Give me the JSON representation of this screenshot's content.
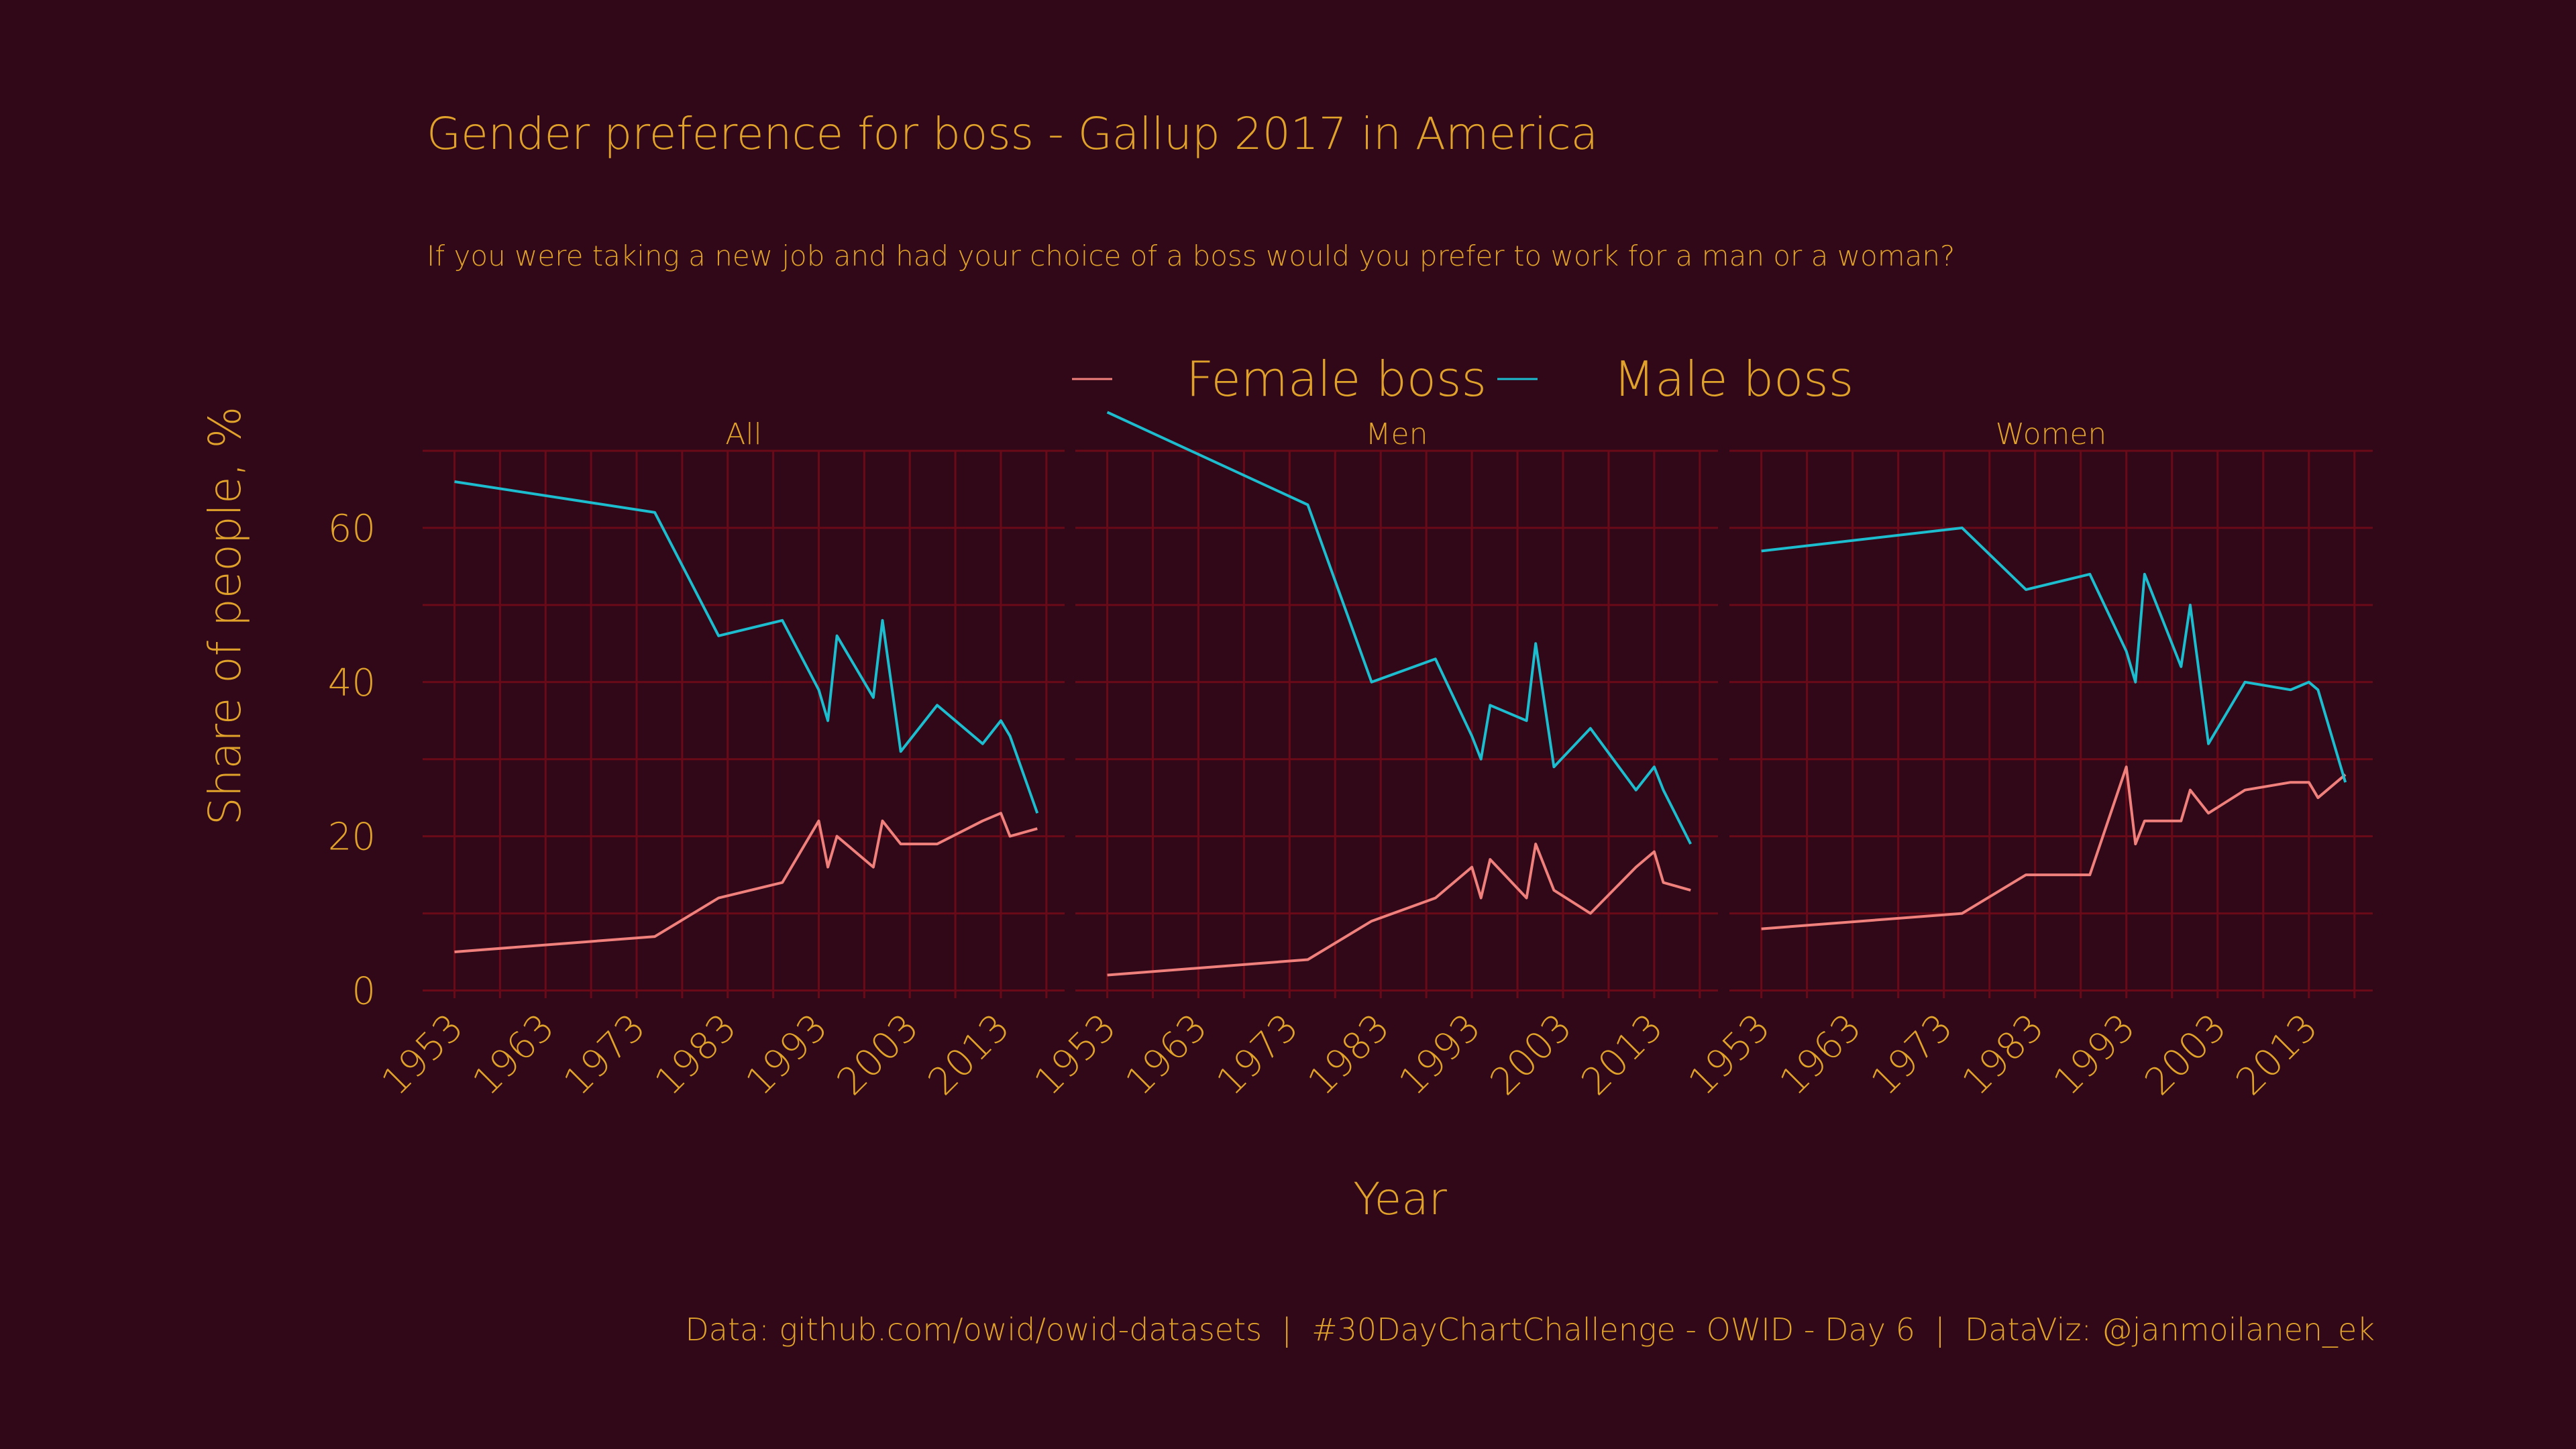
{
  "colors": {
    "background": "#310818",
    "text": "#e0a22a",
    "grid": "#6a0a18",
    "female": "#f0807c",
    "male": "#1cbdce"
  },
  "chart_data": {
    "type": "line",
    "title": "Gender preference for boss - Gallup 2017 in America",
    "subtitle": "If you were taking a new job and had your choice of a boss would you prefer to work for a man or a woman?",
    "xlabel": "Year",
    "ylabel": "Share of people, %",
    "caption": "Data: github.com/owid/owid-datasets  |  #30DayChartChallenge - OWID - Day 6  |  DataViz: @janmoilanen_ek",
    "legend": {
      "position": "top",
      "entries": [
        "Female boss",
        "Male boss"
      ]
    },
    "grid": true,
    "xlim": [
      1949.5,
      2020
    ],
    "ylim": [
      -1,
      70
    ],
    "x_ticks": [
      1953,
      1963,
      1973,
      1983,
      1993,
      2003,
      2013
    ],
    "y_ticks": [
      0,
      20,
      40,
      60
    ],
    "panels": [
      {
        "name": "All",
        "series": [
          {
            "name": "Female boss",
            "x": [
              1953,
              1975,
              1982,
              1989,
              1993,
              1994,
              1995,
              1999,
              2000,
              2002,
              2006,
              2011,
              2013,
              2014,
              2017
            ],
            "values": [
              5,
              7,
              12,
              14,
              22,
              16,
              20,
              16,
              22,
              19,
              19,
              22,
              23,
              20,
              21
            ]
          },
          {
            "name": "Male boss",
            "x": [
              1953,
              1975,
              1982,
              1989,
              1993,
              1994,
              1995,
              1999,
              2000,
              2002,
              2006,
              2011,
              2013,
              2014,
              2017
            ],
            "values": [
              66,
              62,
              46,
              48,
              39,
              35,
              46,
              38,
              48,
              31,
              37,
              32,
              35,
              33,
              23
            ]
          }
        ]
      },
      {
        "name": "Men",
        "series": [
          {
            "name": "Female boss",
            "x": [
              1953,
              1975,
              1982,
              1989,
              1993,
              1994,
              1995,
              1999,
              2000,
              2002,
              2006,
              2011,
              2013,
              2014,
              2017
            ],
            "values": [
              2,
              4,
              9,
              12,
              16,
              12,
              17,
              12,
              19,
              13,
              10,
              16,
              18,
              14,
              13
            ]
          },
          {
            "name": "Male boss",
            "x": [
              1953,
              1975,
              1982,
              1989,
              1993,
              1994,
              1995,
              1999,
              2000,
              2002,
              2006,
              2011,
              2013,
              2014,
              2017
            ],
            "values": [
              75,
              63,
              40,
              43,
              33,
              30,
              37,
              35,
              45,
              29,
              34,
              26,
              29,
              26,
              19
            ]
          }
        ]
      },
      {
        "name": "Women",
        "series": [
          {
            "name": "Female boss",
            "x": [
              1953,
              1975,
              1982,
              1989,
              1993,
              1994,
              1995,
              1999,
              2000,
              2002,
              2006,
              2011,
              2013,
              2014,
              2017
            ],
            "values": [
              8,
              10,
              15,
              15,
              29,
              19,
              22,
              22,
              26,
              23,
              26,
              27,
              27,
              25,
              28
            ]
          },
          {
            "name": "Male boss",
            "x": [
              1953,
              1975,
              1982,
              1989,
              1993,
              1994,
              1995,
              1999,
              2000,
              2002,
              2006,
              2011,
              2013,
              2014,
              2017
            ],
            "values": [
              57,
              60,
              52,
              54,
              44,
              40,
              54,
              42,
              50,
              32,
              40,
              39,
              40,
              39,
              27
            ]
          }
        ]
      }
    ]
  }
}
